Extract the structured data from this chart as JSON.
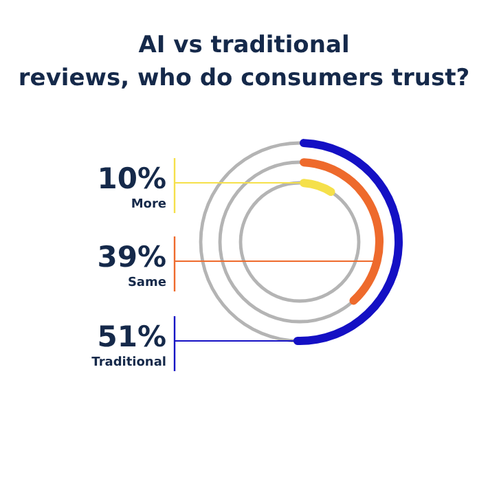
{
  "chart_data": {
    "type": "other",
    "title": "AI vs traditional reviews, who do consumers trust?",
    "categories": [
      "More",
      "Same",
      "Traditional"
    ],
    "values": [
      10,
      39,
      51
    ],
    "value_labels": [
      "10%",
      "39%",
      "51%"
    ],
    "colors": [
      "#f5e04a",
      "#ee6a2c",
      "#1410c4"
    ]
  }
}
